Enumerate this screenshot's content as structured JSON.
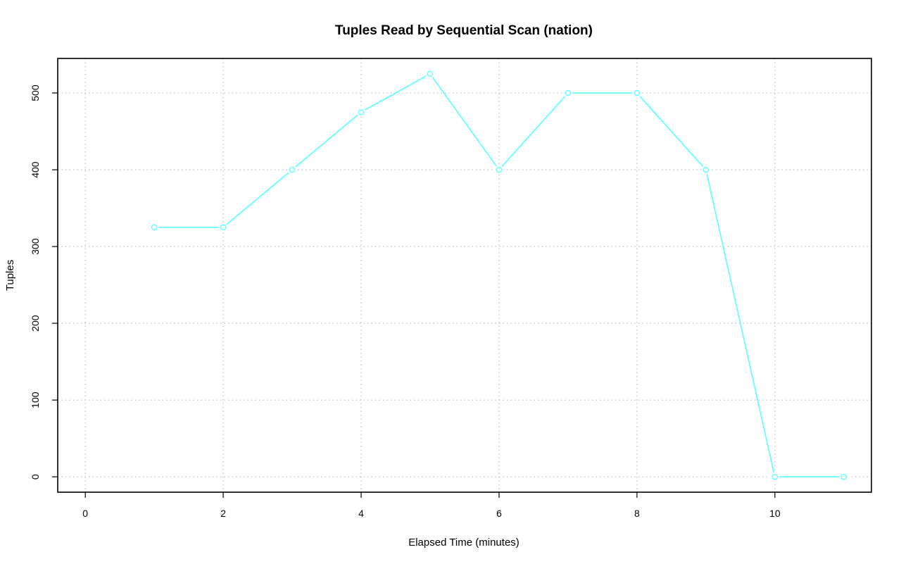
{
  "chart_data": {
    "type": "line",
    "title": "Tuples Read by Sequential Scan (nation)",
    "xlabel": "Elapsed Time (minutes)",
    "ylabel": "Tuples",
    "xlim": [
      -0.4,
      11.4
    ],
    "ylim": [
      -20,
      545
    ],
    "x_ticks": [
      0,
      2,
      4,
      6,
      8,
      10
    ],
    "y_ticks": [
      0,
      100,
      200,
      300,
      400,
      500
    ],
    "grid": true,
    "series": [
      {
        "color": "#66ffff",
        "marker": "open-circle",
        "x": [
          1,
          2,
          3,
          4,
          5,
          6,
          7,
          8,
          9,
          10,
          11
        ],
        "y": [
          325,
          325,
          400,
          475,
          525,
          400,
          500,
          500,
          400,
          0,
          0
        ]
      }
    ]
  }
}
